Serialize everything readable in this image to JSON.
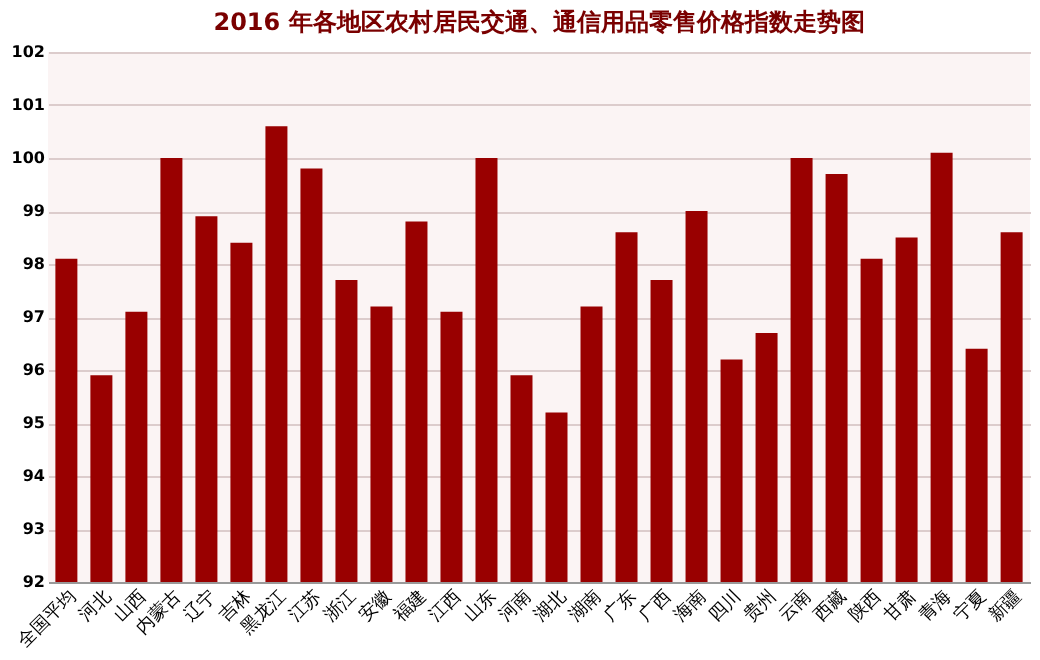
{
  "chart_data": {
    "type": "bar",
    "title": "2016 年各地区农村居民交通、通信用品零售价格指数走势图",
    "categories": [
      "全国平均",
      "河北",
      "山西",
      "内蒙古",
      "辽宁",
      "吉林",
      "黑龙江",
      "江苏",
      "浙江",
      "安徽",
      "福建",
      "江西",
      "山东",
      "河南",
      "湖北",
      "湖南",
      "广东",
      "广西",
      "海南",
      "四川",
      "贵州",
      "云南",
      "西藏",
      "陕西",
      "甘肃",
      "青海",
      "宁夏",
      "新疆"
    ],
    "values": [
      98.1,
      95.9,
      97.1,
      100.0,
      98.9,
      98.4,
      100.6,
      99.8,
      97.7,
      97.2,
      98.8,
      97.1,
      100.0,
      95.9,
      95.2,
      97.2,
      98.6,
      97.7,
      99.0,
      96.2,
      96.7,
      100.0,
      99.7,
      98.1,
      98.5,
      100.1,
      96.4,
      98.6
    ],
    "color": "#990000",
    "ylim": [
      92,
      102
    ],
    "yticks": [
      92,
      93,
      94,
      95,
      96,
      97,
      98,
      99,
      100,
      101,
      102
    ],
    "grid": "y"
  }
}
